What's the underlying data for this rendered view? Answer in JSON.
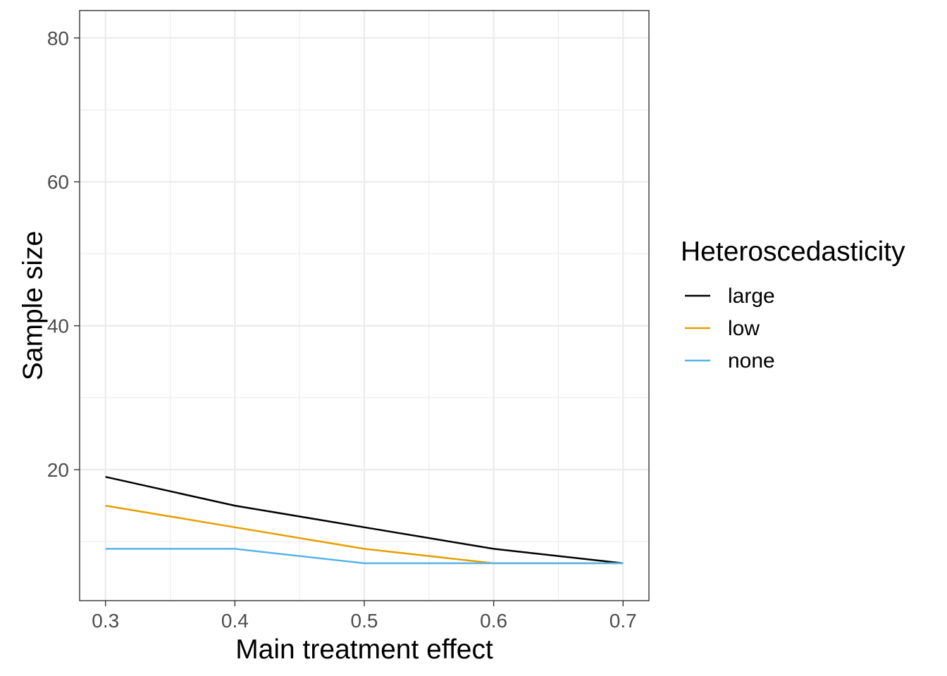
{
  "chart_data": {
    "type": "line",
    "title": "",
    "xlabel": "Main treatment effect",
    "ylabel": "Sample size",
    "x": [
      0.3,
      0.4,
      0.5,
      0.6,
      0.7
    ],
    "xlim": [
      0.28,
      0.72
    ],
    "ylim": [
      1.8,
      83.8
    ],
    "x_ticks": [
      0.3,
      0.4,
      0.5,
      0.6,
      0.7
    ],
    "x_tick_labels": [
      "0.3",
      "0.4",
      "0.5",
      "0.6",
      "0.7"
    ],
    "y_ticks": [
      20,
      40,
      60,
      80
    ],
    "y_tick_labels": [
      "20",
      "40",
      "60",
      "80"
    ],
    "grid": true,
    "legend": {
      "title": "Heteroscedasticity",
      "placement": "right"
    },
    "series": [
      {
        "name": "large",
        "color": "#000000",
        "values": [
          19,
          15,
          12,
          9,
          7
        ]
      },
      {
        "name": "low",
        "color": "#E69F00",
        "values": [
          15,
          12,
          9,
          7,
          7
        ]
      },
      {
        "name": "none",
        "color": "#56B4E9",
        "values": [
          9,
          9,
          7,
          7,
          7
        ]
      }
    ]
  }
}
